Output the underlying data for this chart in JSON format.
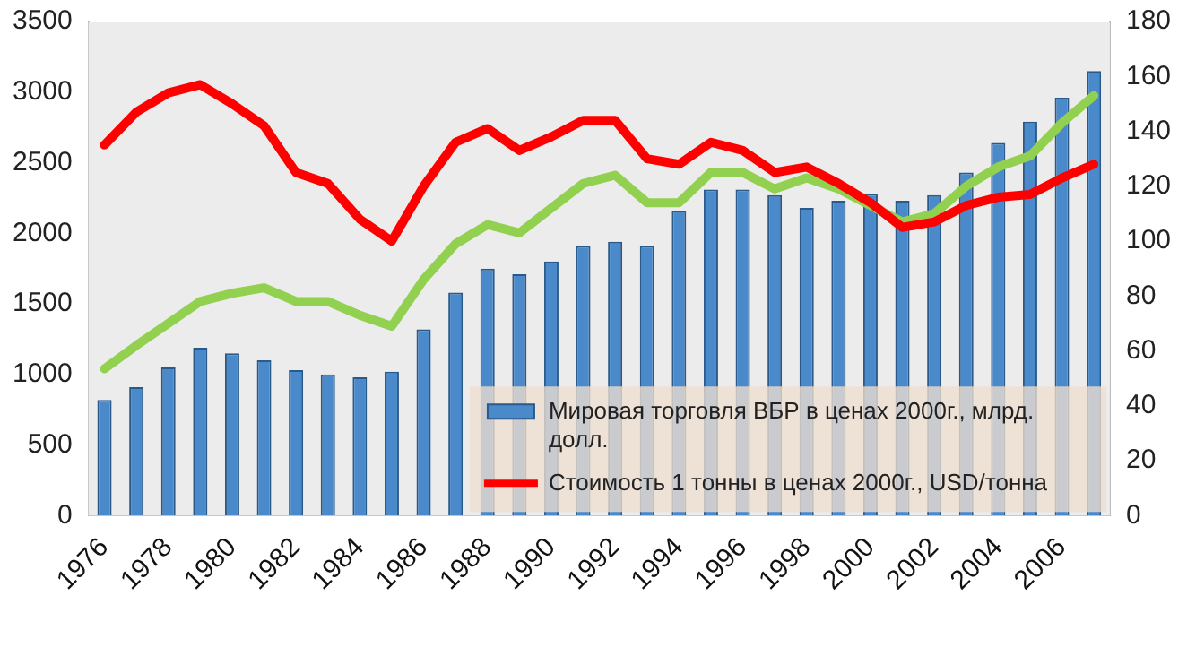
{
  "chart_data": {
    "type": "bar",
    "categories": [
      "1976",
      null,
      "1978",
      null,
      "1980",
      null,
      "1982",
      null,
      "1984",
      null,
      "1986",
      null,
      "1988",
      null,
      "1990",
      null,
      "1992",
      null,
      "1994",
      null,
      "1996",
      null,
      "1998",
      null,
      "2000",
      null,
      "2002",
      null,
      "2004",
      null,
      "2006",
      null
    ],
    "series": [
      {
        "name": "Мировая торговля ВБР в ценах 2000г., млрд. долл.",
        "color": "#4a8acb",
        "values": [
          820,
          910,
          1050,
          1190,
          1150,
          1100,
          1030,
          1000,
          980,
          1020,
          1320,
          1580,
          1750,
          1710,
          1800,
          1910,
          1940,
          1910,
          2160,
          2310,
          2310,
          2270,
          2180,
          2230,
          2280,
          2230,
          2270,
          2430,
          2640,
          2790,
          2960,
          3150
        ]
      },
      {
        "name": "Стоимость 1 тонны в ценах 2000г., USD/тонна",
        "type": "line",
        "axis": "y2",
        "color": "#ff0000",
        "values": [
          135,
          147,
          154,
          157,
          150,
          142,
          125,
          121,
          108,
          100,
          120,
          136,
          141,
          133,
          138,
          144,
          144,
          130,
          128,
          136,
          133,
          125,
          127,
          121,
          114,
          105,
          107,
          113,
          116,
          117,
          123,
          128
        ]
      },
      {
        "type": "line",
        "axis": "y2",
        "color": "#92d050",
        "values": [
          53.5,
          62,
          70,
          78,
          81,
          83,
          78,
          78,
          73,
          69,
          86,
          99,
          106,
          103,
          112,
          121,
          124,
          114,
          114,
          125,
          125,
          119,
          123,
          119,
          113,
          107,
          110,
          120,
          127,
          131,
          143,
          153
        ]
      }
    ],
    "ylim": [
      0,
      3500
    ],
    "yticks": [
      0,
      500,
      1000,
      1500,
      2000,
      2500,
      3000,
      3500
    ],
    "y2lim": [
      0,
      180
    ],
    "y2ticks": [
      0,
      20,
      40,
      60,
      80,
      100,
      120,
      140,
      160,
      180
    ],
    "grid": false,
    "legend": "bottom right",
    "marker": "none",
    "line_style": "solid"
  }
}
